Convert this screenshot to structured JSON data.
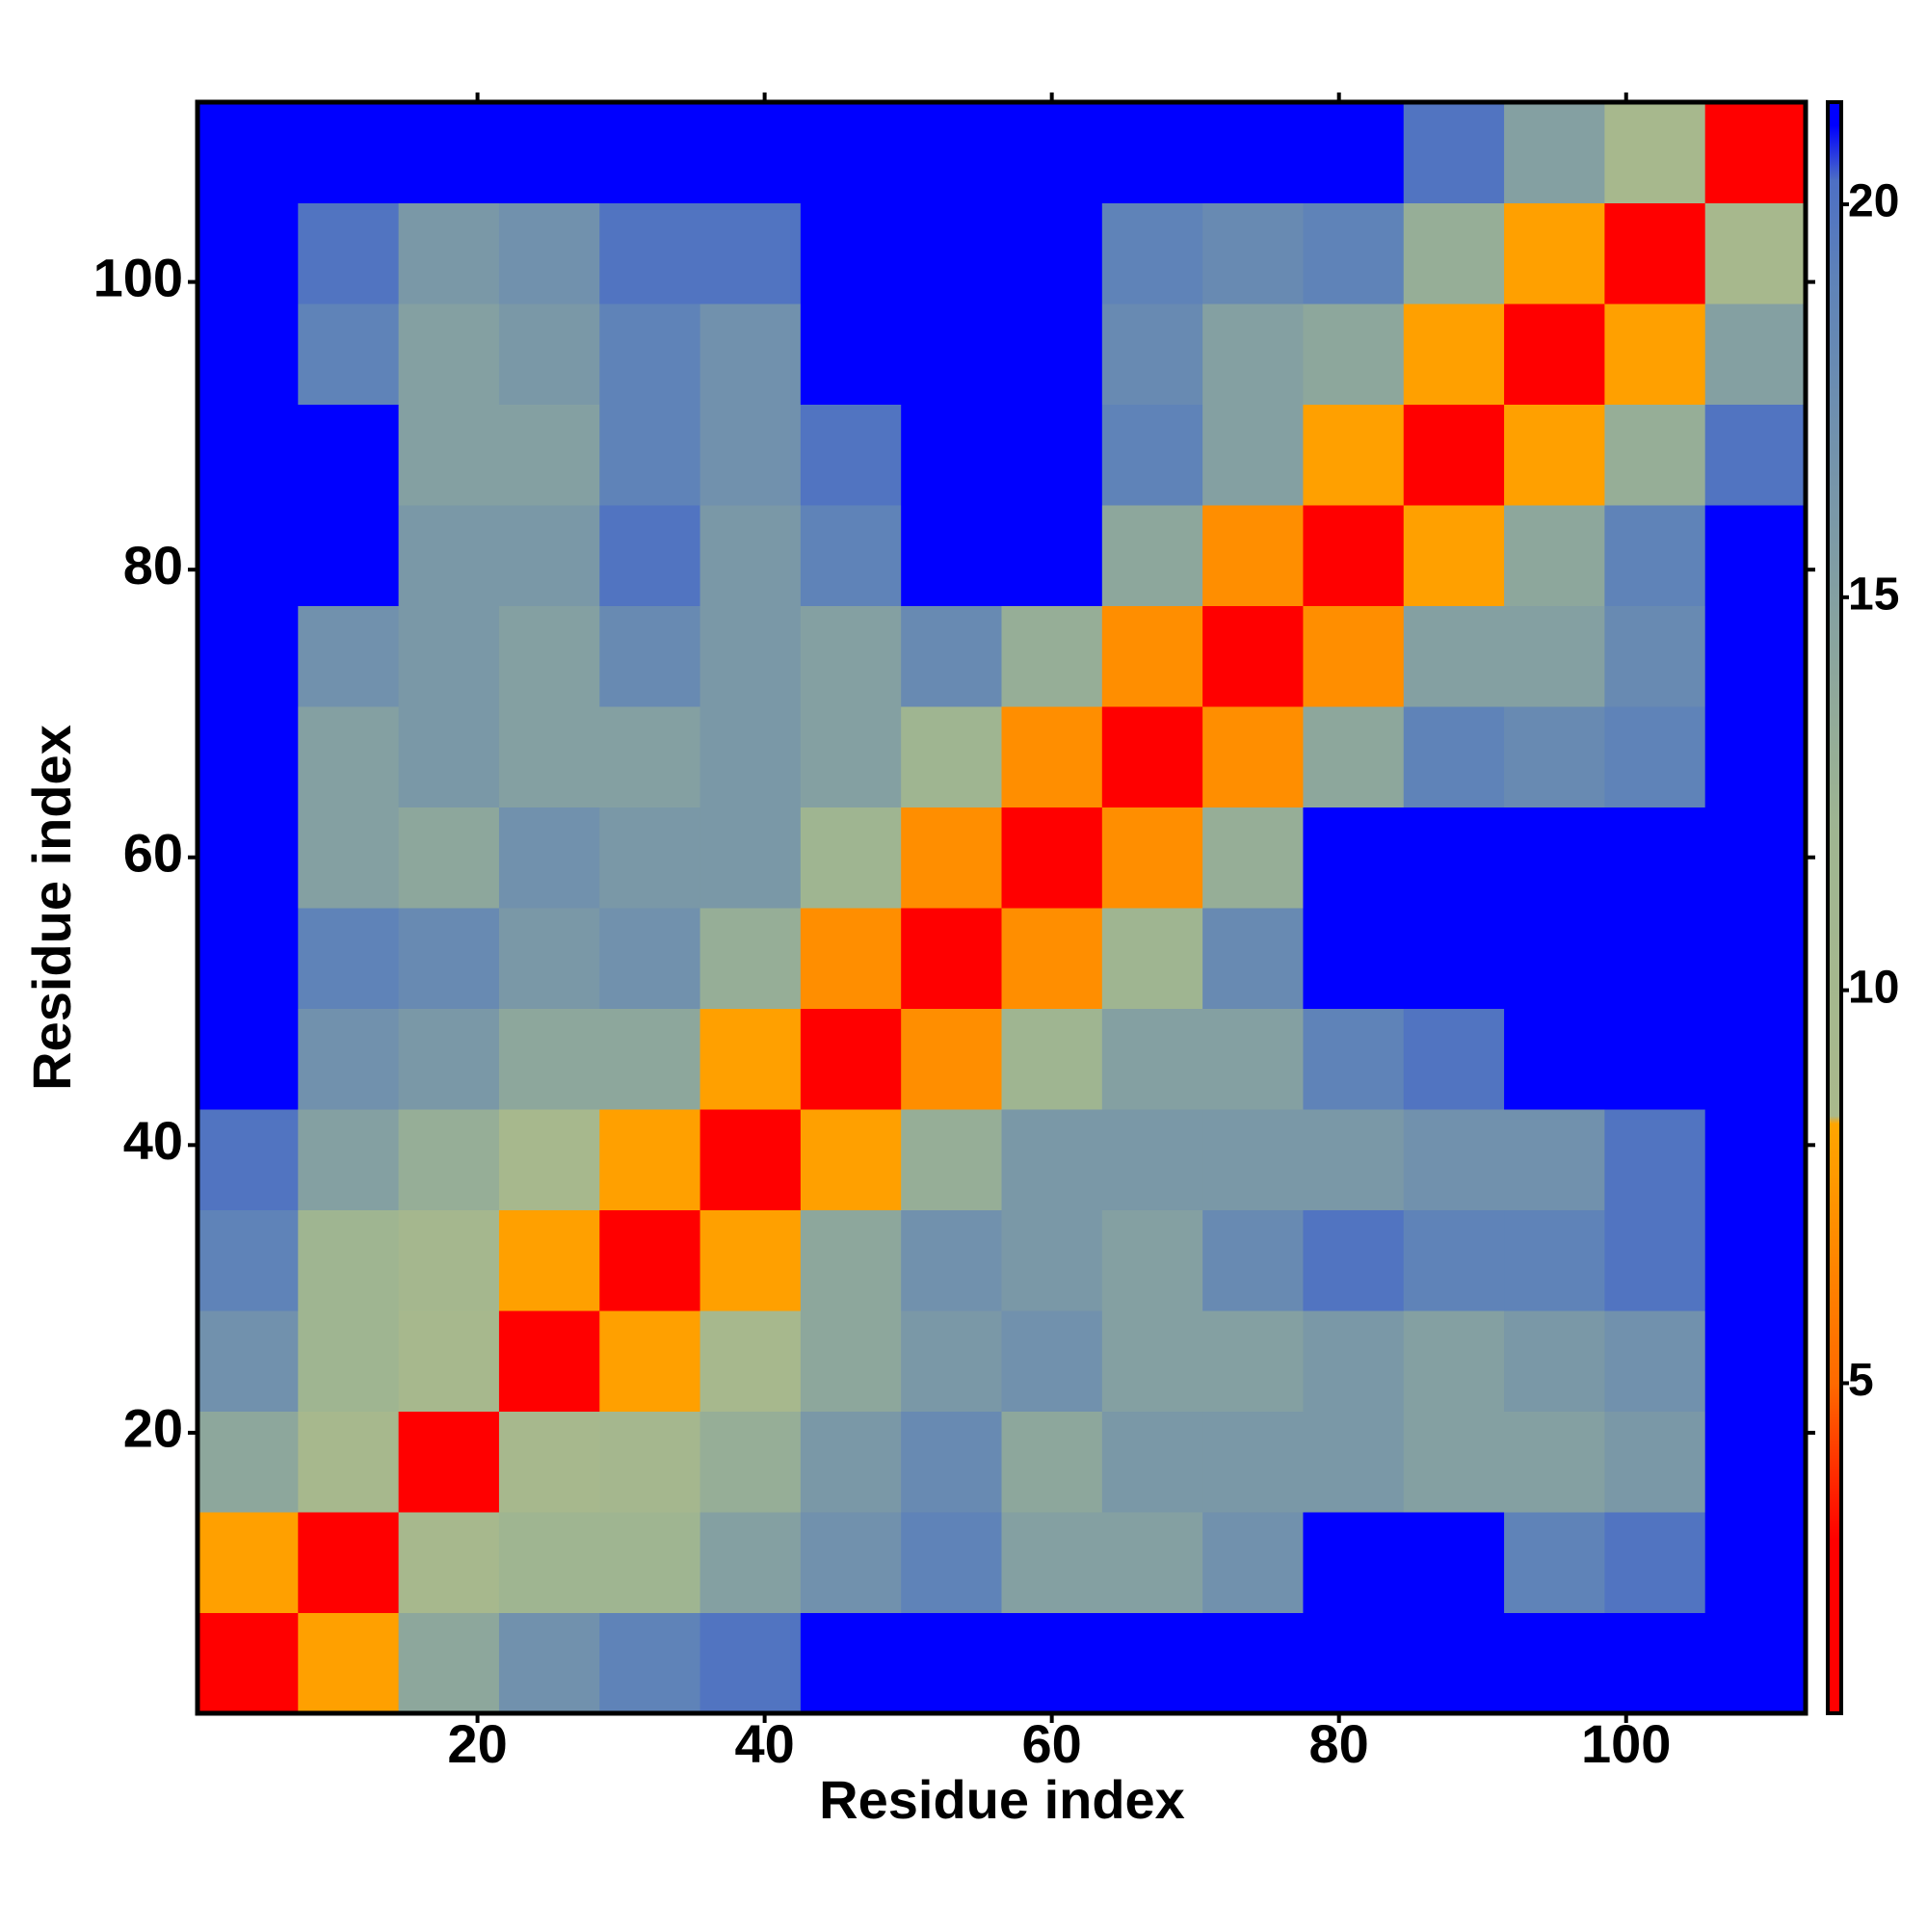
{
  "chart_data": {
    "type": "heatmap",
    "xlabel": "Residue index",
    "ylabel": "Residue index",
    "xlim": [
      0.5,
      112.5
    ],
    "ylim": [
      0.5,
      112.5
    ],
    "xticks": [
      20,
      40,
      60,
      80,
      100
    ],
    "yticks": [
      20,
      40,
      60,
      80,
      100
    ],
    "xbins": [
      0.5,
      7.5,
      14.5,
      21.5,
      28.5,
      35.5,
      42.5,
      49.5,
      56.5,
      63.5,
      70.5,
      77.5,
      84.5,
      91.5,
      98.5,
      105.5,
      112.5
    ],
    "ybins": [
      0.5,
      7.5,
      14.5,
      21.5,
      28.5,
      35.5,
      42.5,
      49.5,
      56.5,
      63.5,
      70.5,
      77.5,
      84.5,
      91.5,
      98.5,
      105.5,
      112.5
    ],
    "z": [
      [
        3,
        8,
        14,
        17,
        19,
        20,
        21,
        21,
        21,
        21,
        21,
        21,
        21,
        21,
        21,
        21
      ],
      [
        8,
        3,
        9,
        12,
        12,
        15,
        17,
        19,
        15,
        15,
        17,
        21,
        21,
        19,
        20,
        21
      ],
      [
        14,
        9,
        3,
        9,
        10,
        13,
        16,
        18,
        14,
        16,
        16,
        16,
        15,
        15,
        16,
        21
      ],
      [
        17,
        12,
        9,
        3,
        8,
        9,
        14,
        16,
        17,
        15,
        15,
        16,
        15,
        16,
        17,
        21
      ],
      [
        19,
        12,
        10,
        8,
        3,
        8,
        14,
        17,
        16,
        15,
        18,
        20,
        19,
        19,
        20,
        21
      ],
      [
        20,
        15,
        13,
        9,
        8,
        3,
        8,
        13,
        16,
        16,
        16,
        16,
        17,
        17,
        20,
        21
      ],
      [
        21,
        17,
        16,
        14,
        14,
        8,
        3,
        7,
        12,
        15,
        15,
        19,
        20,
        21,
        21,
        21
      ],
      [
        21,
        19,
        18,
        16,
        17,
        13,
        7,
        3,
        7,
        12,
        18,
        21,
        21,
        21,
        21,
        21
      ],
      [
        21,
        15,
        14,
        17,
        16,
        16,
        12,
        7,
        3,
        7,
        13,
        21,
        21,
        21,
        21,
        21
      ],
      [
        21,
        15,
        16,
        15,
        15,
        16,
        15,
        12,
        7,
        3,
        7,
        14,
        19,
        18,
        19,
        21
      ],
      [
        21,
        17,
        16,
        15,
        18,
        16,
        15,
        18,
        13,
        7,
        3,
        7,
        15,
        15,
        18,
        21
      ],
      [
        21,
        21,
        16,
        16,
        20,
        16,
        19,
        21,
        21,
        14,
        7,
        3,
        8,
        14,
        19,
        21
      ],
      [
        21,
        21,
        15,
        15,
        19,
        17,
        20,
        21,
        21,
        19,
        15,
        8,
        3,
        8,
        13,
        20
      ],
      [
        21,
        19,
        15,
        16,
        19,
        17,
        21,
        21,
        21,
        18,
        15,
        14,
        8,
        3,
        8,
        15
      ],
      [
        21,
        20,
        16,
        17,
        20,
        20,
        21,
        21,
        21,
        19,
        18,
        19,
        13,
        8,
        3,
        9
      ],
      [
        21,
        21,
        21,
        21,
        21,
        21,
        21,
        21,
        21,
        21,
        21,
        21,
        20,
        15,
        9,
        3
      ]
    ],
    "clim": [
      0.8,
      21.3
    ],
    "cticks": [
      5,
      10,
      15,
      20
    ],
    "colorscale": [
      [
        0.8,
        "#ff0000"
      ],
      [
        3,
        "#ff0000"
      ],
      [
        5,
        "#ff6a00"
      ],
      [
        8.3,
        "#ffa500"
      ],
      [
        8.4,
        "#a9b98c"
      ],
      [
        12,
        "#9fb591"
      ],
      [
        19,
        "#5f83b8"
      ],
      [
        20.3,
        "#4d6fc4"
      ],
      [
        21.0,
        "#0000ff"
      ],
      [
        21.3,
        "#0000ff"
      ]
    ]
  }
}
